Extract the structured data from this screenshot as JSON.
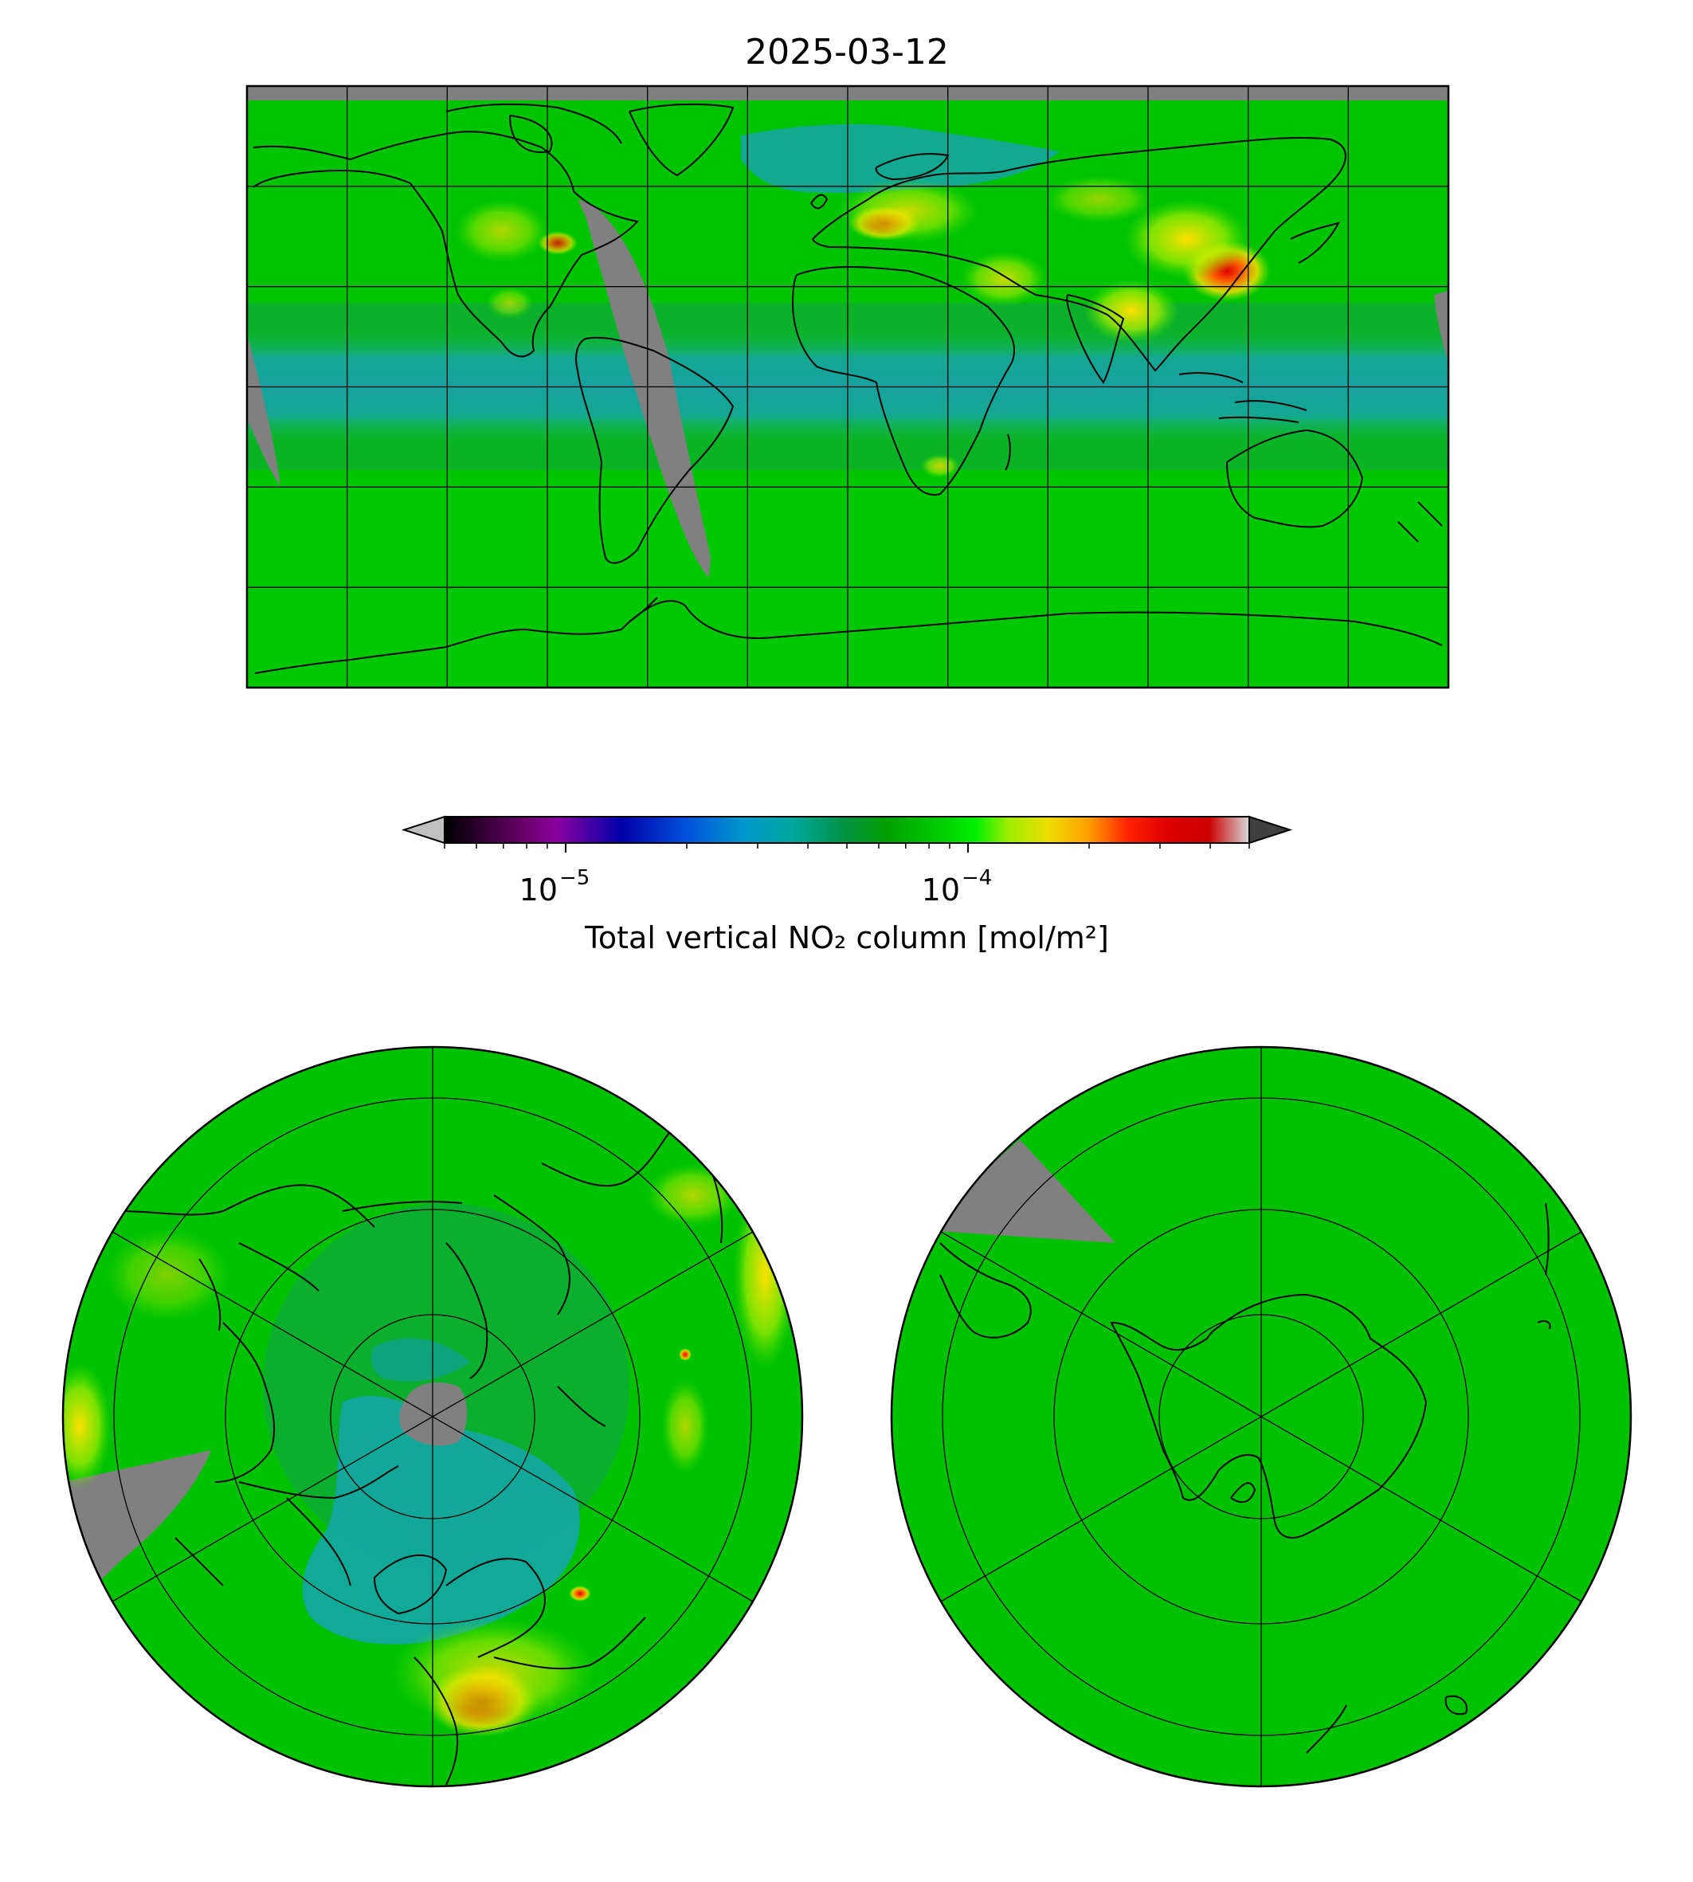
{
  "figure": {
    "title": "2025-03-12"
  },
  "colorbar": {
    "label": "Total vertical NO₂ column [mol/m²]",
    "scale": "log",
    "range": [
      5e-06,
      0.0005
    ],
    "ticks": [
      {
        "value": 1e-05,
        "base": "10",
        "exp": "−5"
      },
      {
        "value": 0.0001,
        "base": "10",
        "exp": "−4"
      }
    ],
    "extend": "both",
    "under_color": "#c0c0c0",
    "over_color": "#404040",
    "colormap_stops": [
      {
        "pos": 0.0,
        "color": "#000000"
      },
      {
        "pos": 0.1,
        "color": "#6b006b"
      },
      {
        "pos": 0.14,
        "color": "#8a00a0"
      },
      {
        "pos": 0.22,
        "color": "#0000aa"
      },
      {
        "pos": 0.3,
        "color": "#0050dd"
      },
      {
        "pos": 0.37,
        "color": "#0097cc"
      },
      {
        "pos": 0.43,
        "color": "#00a8a0"
      },
      {
        "pos": 0.5,
        "color": "#009140"
      },
      {
        "pos": 0.55,
        "color": "#00a000"
      },
      {
        "pos": 0.62,
        "color": "#00d000"
      },
      {
        "pos": 0.66,
        "color": "#00f000"
      },
      {
        "pos": 0.7,
        "color": "#9dee00"
      },
      {
        "pos": 0.75,
        "color": "#eedd00"
      },
      {
        "pos": 0.8,
        "color": "#ffa000"
      },
      {
        "pos": 0.85,
        "color": "#ff2000"
      },
      {
        "pos": 0.9,
        "color": "#dd0000"
      },
      {
        "pos": 0.95,
        "color": "#cc0000"
      },
      {
        "pos": 1.0,
        "color": "#d8d8d8"
      }
    ]
  },
  "colors": {
    "background_field": "#00c800",
    "tropical_band": "#14a898",
    "missing_data": "#808080",
    "hotspot": "#e60000",
    "elevated": "#ffd000",
    "frame": "#000000"
  },
  "maps": [
    {
      "name": "global",
      "projection": "plate-carree"
    },
    {
      "name": "north-pole",
      "projection": "north-polar-stereographic"
    },
    {
      "name": "south-pole",
      "projection": "south-polar-stereographic"
    }
  ]
}
